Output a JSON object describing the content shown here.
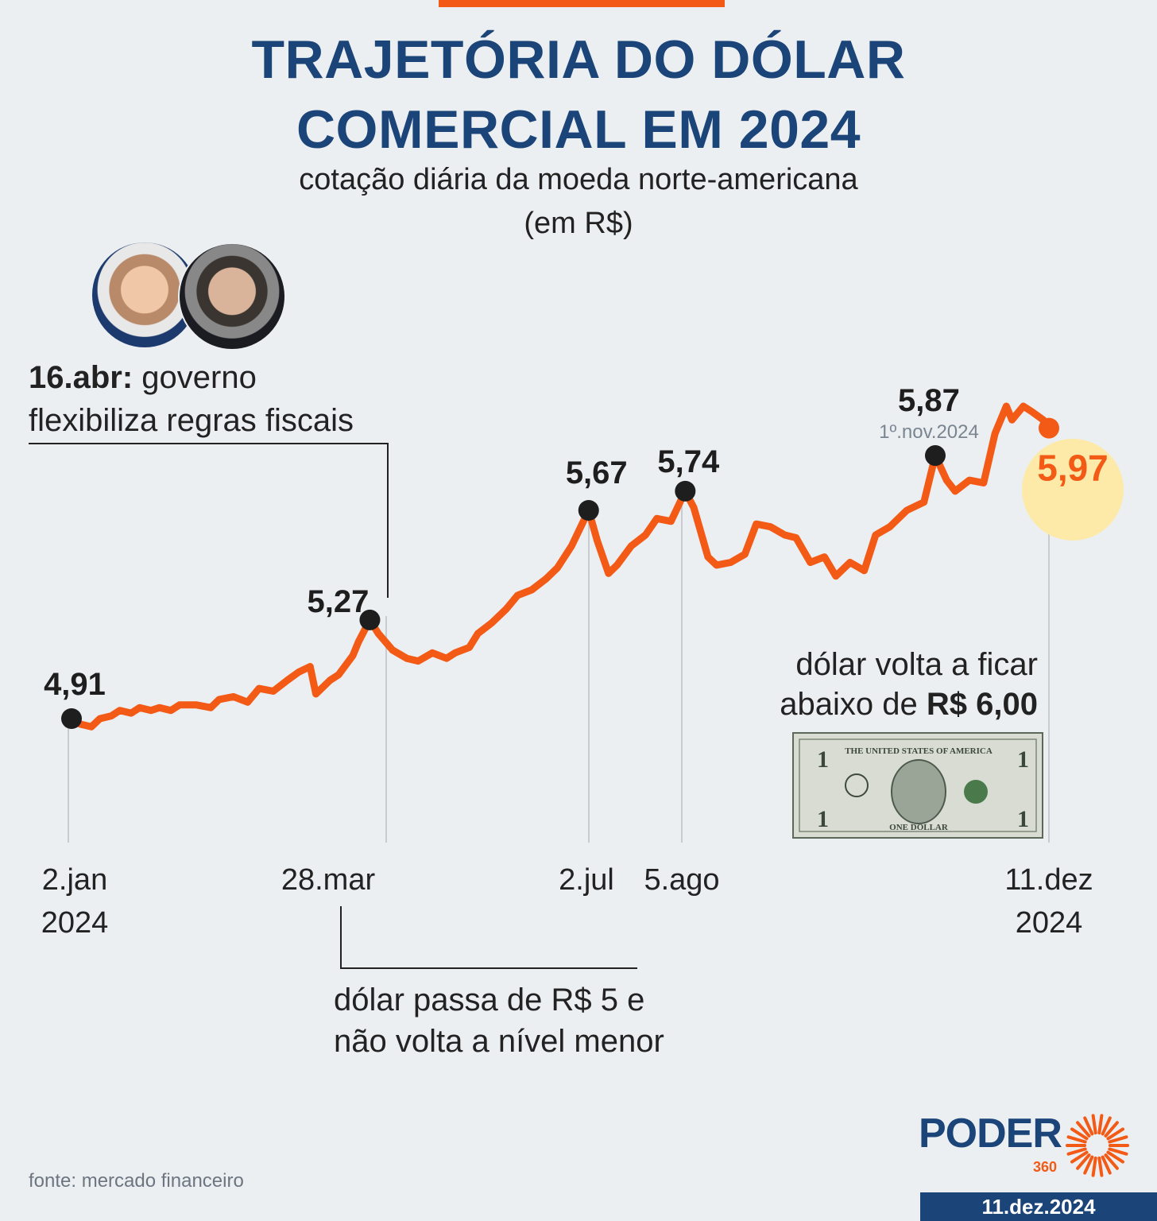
{
  "header": {
    "title_line1": "TRAJETÓRIA DO DÓLAR",
    "title_line2": "COMERCIAL EM 2024",
    "subtitle_line1": "cotação diária da moeda norte-americana",
    "subtitle_line2": "(em R$)"
  },
  "annotations": {
    "abr_bold": "16.abr:",
    "abr_text1": " governo",
    "abr_text2": "flexibiliza regras fiscais",
    "mar_text1": "dólar passa de R$ 5 e",
    "mar_text2": "não volta a nível menor",
    "dez_text1": "dólar volta a ficar",
    "dez_text2a": "abaixo de ",
    "dez_text2b": "R$ 6,00",
    "bill_text_top": "THE UNITED STATES OF AMERICA",
    "bill_text_bottom": "ONE DOLLAR"
  },
  "xaxis": {
    "jan_1": "2.jan",
    "jan_2": "2024",
    "mar": "28.mar",
    "jul": "2.jul",
    "ago": "5.ago",
    "dez_1": "11.dez",
    "dez_2": "2024"
  },
  "footer": {
    "source": "fonte: mercado financeiro",
    "logo": "PODER",
    "logo_sub": "360",
    "date": "11.dez.2024"
  },
  "colors": {
    "line": "#f25a16",
    "title": "#1b4478",
    "highlight": "#fdeaa8",
    "marker": "#1e1e1e"
  },
  "chart_data": {
    "type": "line",
    "title": "TRAJETÓRIA DO DÓLAR COMERCIAL EM 2024",
    "subtitle": "cotação diária da moeda norte-americana (em R$)",
    "series": [
      {
        "x": [
          "2024-01-02",
          "2024-01-05",
          "2024-01-09",
          "2024-01-12",
          "2024-01-16",
          "2024-01-19",
          "2024-01-23",
          "2024-01-26",
          "2024-01-30",
          "2024-02-02",
          "2024-02-06",
          "2024-02-09",
          "2024-02-15",
          "2024-02-20",
          "2024-02-23",
          "2024-02-28",
          "2024-03-04",
          "2024-03-08",
          "2024-03-13",
          "2024-03-18",
          "2024-03-22",
          "2024-03-26",
          "2024-03-28",
          "2024-04-02",
          "2024-04-05",
          "2024-04-10",
          "2024-04-12",
          "2024-04-16",
          "2024-04-19",
          "2024-04-24",
          "2024-04-29",
          "2024-05-03",
          "2024-05-08",
          "2024-05-13",
          "2024-05-16",
          "2024-05-21",
          "2024-05-24",
          "2024-05-29",
          "2024-06-03",
          "2024-06-07",
          "2024-06-12",
          "2024-06-17",
          "2024-06-21",
          "2024-06-26",
          "2024-07-02",
          "2024-07-05",
          "2024-07-09",
          "2024-07-12",
          "2024-07-17",
          "2024-07-22",
          "2024-07-26",
          "2024-07-31",
          "2024-08-05",
          "2024-08-08",
          "2024-08-13",
          "2024-08-16",
          "2024-08-21",
          "2024-08-26",
          "2024-08-30",
          "2024-09-04",
          "2024-09-09",
          "2024-09-13",
          "2024-09-18",
          "2024-09-23",
          "2024-09-27",
          "2024-10-02",
          "2024-10-07",
          "2024-10-11",
          "2024-10-16",
          "2024-10-22",
          "2024-10-28",
          "2024-11-01",
          "2024-11-05",
          "2024-11-08",
          "2024-11-13",
          "2024-11-18",
          "2024-11-22",
          "2024-11-26",
          "2024-11-28",
          "2024-12-02",
          "2024-12-05",
          "2024-12-09",
          "2024-12-11"
        ],
        "y": [
          4.91,
          4.89,
          4.88,
          4.91,
          4.92,
          4.94,
          4.93,
          4.95,
          4.94,
          4.95,
          4.94,
          4.96,
          4.96,
          4.95,
          4.98,
          4.99,
          4.97,
          5.02,
          5.01,
          5.05,
          5.08,
          5.1,
          5.0,
          5.05,
          5.07,
          5.14,
          5.19,
          5.27,
          5.22,
          5.16,
          5.13,
          5.12,
          5.15,
          5.13,
          5.15,
          5.17,
          5.22,
          5.26,
          5.31,
          5.36,
          5.38,
          5.42,
          5.46,
          5.54,
          5.67,
          5.56,
          5.44,
          5.47,
          5.54,
          5.58,
          5.64,
          5.63,
          5.74,
          5.68,
          5.5,
          5.47,
          5.48,
          5.51,
          5.62,
          5.61,
          5.58,
          5.57,
          5.48,
          5.5,
          5.43,
          5.48,
          5.45,
          5.58,
          5.61,
          5.67,
          5.7,
          5.87,
          5.78,
          5.74,
          5.78,
          5.77,
          5.95,
          6.05,
          6.0,
          6.05,
          6.03,
          6.0,
          5.97
        ]
      }
    ],
    "highlights": [
      {
        "label": "4,91",
        "date": "2024-01-02",
        "value": 4.91
      },
      {
        "label": "5,27",
        "date": "2024-04-16",
        "value": 5.27
      },
      {
        "label": "5,67",
        "date": "2024-07-02",
        "value": 5.67
      },
      {
        "label": "5,74",
        "date": "2024-08-05",
        "value": 5.74
      },
      {
        "label": "5,87",
        "date": "2024-11-01",
        "value": 5.87,
        "sublabel": "1º.nov.2024"
      },
      {
        "label": "5,97",
        "date": "2024-12-11",
        "value": 5.97
      }
    ],
    "grid": false
  }
}
